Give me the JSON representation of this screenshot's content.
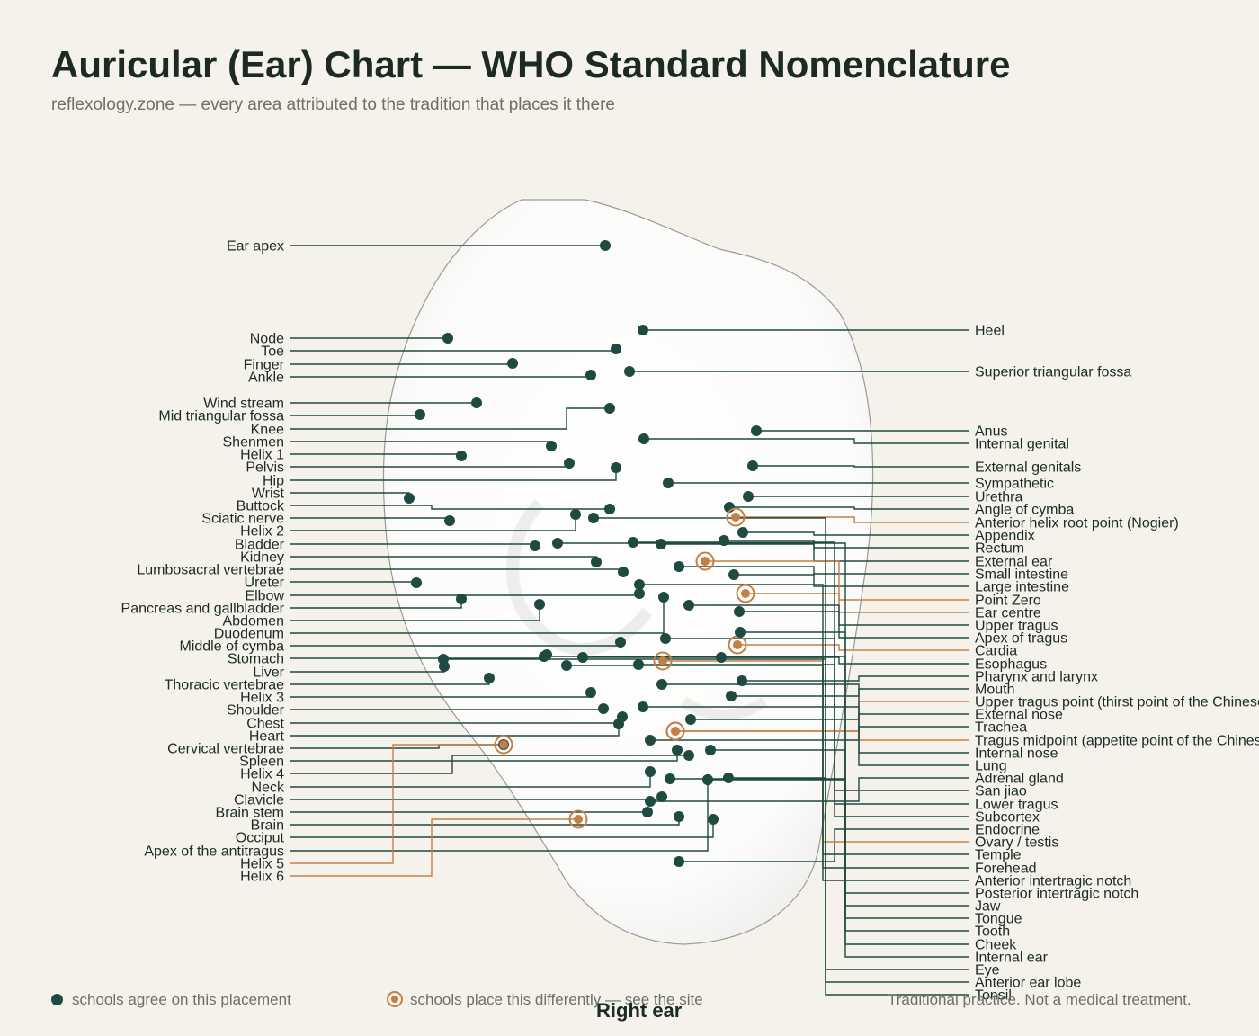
{
  "title": "Auricular (Ear) Chart — WHO Standard Nomenclature",
  "subtitle": "reflexology.zone — every area attributed to the tradition that places it there",
  "ear_label": "Right ear",
  "legend": {
    "agree": "schools agree on this placement",
    "differ": "schools place this differently — see the site",
    "disclaimer": "Traditional practice. Not a medical treatment."
  },
  "colors": {
    "agree": "#1f4a41",
    "differ": "#c57f45",
    "background": "#f4f2ea"
  },
  "points_left": [
    {
      "label": "Ear apex",
      "type": "agree"
    },
    {
      "label": "Node",
      "type": "agree"
    },
    {
      "label": "Toe",
      "type": "agree"
    },
    {
      "label": "Finger",
      "type": "agree"
    },
    {
      "label": "Ankle",
      "type": "agree"
    },
    {
      "label": "Wind stream",
      "type": "agree"
    },
    {
      "label": "Mid triangular fossa",
      "type": "agree"
    },
    {
      "label": "Knee",
      "type": "agree"
    },
    {
      "label": "Shenmen",
      "type": "agree"
    },
    {
      "label": "Helix 1",
      "type": "agree"
    },
    {
      "label": "Pelvis",
      "type": "agree"
    },
    {
      "label": "Hip",
      "type": "agree"
    },
    {
      "label": "Wrist",
      "type": "agree"
    },
    {
      "label": "Buttock",
      "type": "agree"
    },
    {
      "label": "Sciatic nerve",
      "type": "agree"
    },
    {
      "label": "Helix 2",
      "type": "agree"
    },
    {
      "label": "Bladder",
      "type": "agree"
    },
    {
      "label": "Kidney",
      "type": "agree"
    },
    {
      "label": "Lumbosacral vertebrae",
      "type": "agree"
    },
    {
      "label": "Ureter",
      "type": "agree"
    },
    {
      "label": "Elbow",
      "type": "agree"
    },
    {
      "label": "Pancreas and gallbladder",
      "type": "agree"
    },
    {
      "label": "Abdomen",
      "type": "agree"
    },
    {
      "label": "Duodenum",
      "type": "agree"
    },
    {
      "label": "Middle of cymba",
      "type": "agree"
    },
    {
      "label": "Stomach",
      "type": "agree"
    },
    {
      "label": "Liver",
      "type": "agree"
    },
    {
      "label": "Thoracic vertebrae",
      "type": "agree"
    },
    {
      "label": "Helix 3",
      "type": "agree"
    },
    {
      "label": "Shoulder",
      "type": "agree"
    },
    {
      "label": "Chest",
      "type": "agree"
    },
    {
      "label": "Heart",
      "type": "agree"
    },
    {
      "label": "Cervical vertebrae",
      "type": "agree"
    },
    {
      "label": "Spleen",
      "type": "agree"
    },
    {
      "label": "Helix 4",
      "type": "agree"
    },
    {
      "label": "Neck",
      "type": "agree"
    },
    {
      "label": "Clavicle",
      "type": "agree"
    },
    {
      "label": "Brain stem",
      "type": "agree"
    },
    {
      "label": "Brain",
      "type": "agree"
    },
    {
      "label": "Occiput",
      "type": "agree"
    },
    {
      "label": "Apex of the antitragus",
      "type": "agree"
    },
    {
      "label": "Helix 5",
      "type": "differ"
    },
    {
      "label": "Helix 6",
      "type": "differ"
    }
  ],
  "points_right": [
    {
      "label": "Heel",
      "type": "agree"
    },
    {
      "label": "Superior triangular fossa",
      "type": "agree"
    },
    {
      "label": "Anus",
      "type": "agree"
    },
    {
      "label": "Internal genital",
      "type": "agree"
    },
    {
      "label": "External genitals",
      "type": "agree"
    },
    {
      "label": "Sympathetic",
      "type": "agree"
    },
    {
      "label": "Urethra",
      "type": "agree"
    },
    {
      "label": "Angle of cymba",
      "type": "agree"
    },
    {
      "label": "Anterior helix root point (Nogier)",
      "type": "differ"
    },
    {
      "label": "Appendix",
      "type": "agree"
    },
    {
      "label": "Rectum",
      "type": "agree"
    },
    {
      "label": "External ear",
      "type": "agree"
    },
    {
      "label": "Small intestine",
      "type": "agree"
    },
    {
      "label": "Large intestine",
      "type": "agree"
    },
    {
      "label": "Point Zero",
      "type": "differ"
    },
    {
      "label": "Ear centre",
      "type": "differ"
    },
    {
      "label": "Upper tragus",
      "type": "agree"
    },
    {
      "label": "Apex of tragus",
      "type": "agree"
    },
    {
      "label": "Cardia",
      "type": "differ"
    },
    {
      "label": "Esophagus",
      "type": "agree"
    },
    {
      "label": "Pharynx and larynx",
      "type": "agree"
    },
    {
      "label": "Mouth",
      "type": "agree"
    },
    {
      "label": "Upper tragus point (thirst point of the Chinese school)",
      "type": "differ"
    },
    {
      "label": "External nose",
      "type": "agree"
    },
    {
      "label": "Trachea",
      "type": "agree"
    },
    {
      "label": "Tragus midpoint (appetite point of the Chinese school)",
      "type": "differ"
    },
    {
      "label": "Internal nose",
      "type": "agree"
    },
    {
      "label": "Lung",
      "type": "agree"
    },
    {
      "label": "Adrenal gland",
      "type": "agree"
    },
    {
      "label": "San jiao",
      "type": "agree"
    },
    {
      "label": "Lower tragus",
      "type": "agree"
    },
    {
      "label": "Subcortex",
      "type": "agree"
    },
    {
      "label": "Endocrine",
      "type": "agree"
    },
    {
      "label": "Ovary / testis",
      "type": "differ"
    },
    {
      "label": "Temple",
      "type": "agree"
    },
    {
      "label": "Forehead",
      "type": "agree"
    },
    {
      "label": "Anterior intertragic notch",
      "type": "agree"
    },
    {
      "label": "Posterior intertragic notch",
      "type": "agree"
    },
    {
      "label": "Jaw",
      "type": "agree"
    },
    {
      "label": "Tongue",
      "type": "agree"
    },
    {
      "label": "Tooth",
      "type": "agree"
    },
    {
      "label": "Cheek",
      "type": "agree"
    },
    {
      "label": "Internal ear",
      "type": "agree"
    },
    {
      "label": "Eye",
      "type": "agree"
    },
    {
      "label": "Anterior ear lobe",
      "type": "agree"
    },
    {
      "label": "Tonsil",
      "type": "agree"
    }
  ]
}
